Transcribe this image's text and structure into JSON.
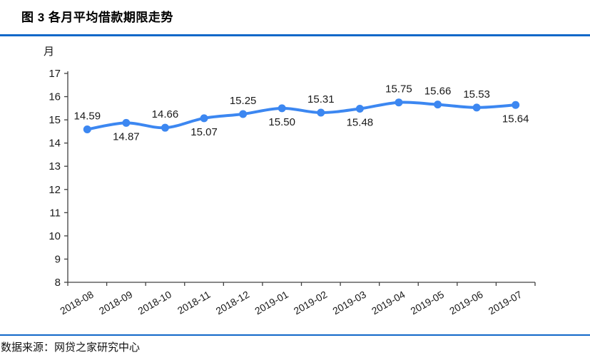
{
  "page": {
    "title": "图 3 各月平均借款期限走势",
    "source": "数据来源：网贷之家研究中心"
  },
  "colors": {
    "rule": "#1168c9",
    "line": "#3c87f1",
    "axis": "#404040",
    "label": "#1a1a1a"
  },
  "chart_data": {
    "type": "line",
    "title": "图 3 各月平均借款期限走势",
    "unit_label": "月",
    "categories": [
      "2018-08",
      "2018-09",
      "2018-10",
      "2018-11",
      "2018-12",
      "2019-01",
      "2019-02",
      "2019-03",
      "2019-04",
      "2019-05",
      "2019-06",
      "2019-07"
    ],
    "values": [
      14.59,
      14.87,
      14.66,
      15.07,
      15.25,
      15.5,
      15.31,
      15.48,
      15.75,
      15.66,
      15.53,
      15.64
    ],
    "value_label_positions": [
      "above",
      "below",
      "above",
      "below",
      "above",
      "below",
      "above",
      "below",
      "above",
      "above",
      "above",
      "below"
    ],
    "value_label_decimals": 2,
    "ylim": [
      8,
      17
    ],
    "ytick_step": 1,
    "grid": false,
    "legend": "none",
    "marker": "circle",
    "smooth": true,
    "source": "数据来源：网贷之家研究中心"
  }
}
